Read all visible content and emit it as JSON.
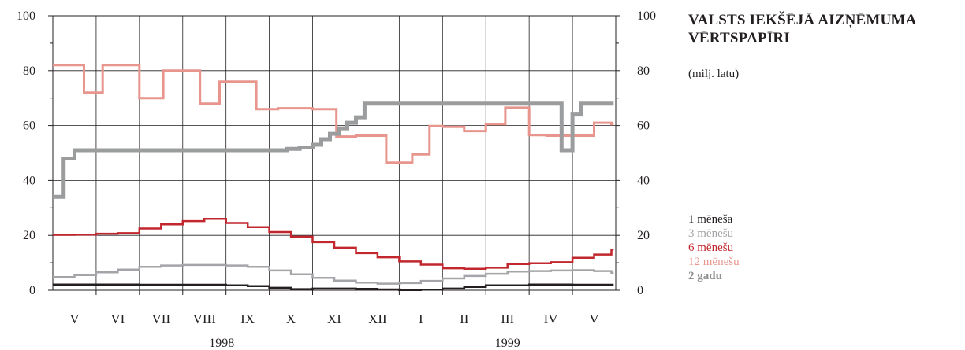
{
  "chart_data": {
    "type": "line",
    "title": "VALSTS IEKŠĒJĀ AIZŅĒMUMA VĒRTSPAPĪRI",
    "subtitle": "(milj. latu)",
    "ylim": [
      0,
      100
    ],
    "y_ticks": [
      "0",
      "20",
      "40",
      "60",
      "80",
      "100"
    ],
    "x_range": [
      0,
      13
    ],
    "months": [
      "V",
      "VI",
      "VII",
      "VIII",
      "IX",
      "X",
      "XI",
      "XII",
      "I",
      "II",
      "III",
      "IV",
      "V"
    ],
    "years": [
      {
        "label": "1998",
        "center": 3.9
      },
      {
        "label": "1999",
        "center": 10.5
      }
    ],
    "grid": true,
    "legend_position": "right",
    "series": [
      {
        "name": "1 mēneša",
        "color": "#231f20",
        "width": 2.5,
        "bold": false,
        "x": [
          0.0,
          1.0,
          2.0,
          3.0,
          4.0,
          4.5,
          5.0,
          5.5,
          6.0,
          7.0,
          7.5,
          8.0,
          8.5,
          9.0,
          9.5,
          10.0,
          11.0,
          12.0,
          12.9
        ],
        "y": [
          2.1,
          2.1,
          2.0,
          2.0,
          1.8,
          1.5,
          0.9,
          0.4,
          0.6,
          0.5,
          0.3,
          0.1,
          0.2,
          0.6,
          1.2,
          1.8,
          2.1,
          2.0,
          2.0
        ]
      },
      {
        "name": "3 mēnešu",
        "color": "#a3a5a8",
        "width": 2.5,
        "bold": false,
        "x": [
          0.0,
          0.5,
          1.0,
          1.5,
          2.0,
          2.5,
          3.0,
          3.5,
          4.0,
          4.5,
          5.0,
          5.5,
          6.0,
          6.5,
          7.0,
          7.5,
          8.0,
          8.5,
          9.0,
          9.5,
          10.0,
          10.5,
          11.0,
          11.5,
          12.0,
          12.5,
          12.9
        ],
        "y": [
          4.8,
          5.5,
          6.5,
          7.5,
          8.5,
          9.0,
          9.2,
          9.2,
          9.0,
          8.5,
          7.2,
          5.8,
          4.5,
          3.5,
          2.8,
          2.4,
          2.6,
          3.4,
          4.3,
          5.2,
          6.0,
          6.8,
          7.0,
          7.2,
          7.3,
          7.0,
          6.3
        ]
      },
      {
        "name": "6 mēnešu",
        "color": "#c1272d",
        "width": 2.5,
        "bold": false,
        "x": [
          0.0,
          0.5,
          1.0,
          1.5,
          2.0,
          2.5,
          3.0,
          3.5,
          4.0,
          4.5,
          5.0,
          5.5,
          6.0,
          6.5,
          7.0,
          7.5,
          8.0,
          8.5,
          9.0,
          9.5,
          10.0,
          10.5,
          11.0,
          11.5,
          12.0,
          12.5,
          12.9
        ],
        "y": [
          20.2,
          20.3,
          20.6,
          20.8,
          22.5,
          24.0,
          25.2,
          26.0,
          24.5,
          23.0,
          21.2,
          19.5,
          17.5,
          15.5,
          13.5,
          12.0,
          10.5,
          9.3,
          8.0,
          7.8,
          8.2,
          9.5,
          9.8,
          10.2,
          11.8,
          13.0,
          14.8
        ]
      },
      {
        "name": "12 mēnešu",
        "color": "#e8968d",
        "width": 3,
        "bold": false,
        "x": [
          0.0,
          0.72,
          1.15,
          2.0,
          2.55,
          3.4,
          3.85,
          4.7,
          5.2,
          6.0,
          6.55,
          7.0,
          7.7,
          8.3,
          8.7,
          9.0,
          9.5,
          10.0,
          10.45,
          11.0,
          11.4,
          12.5,
          12.9
        ],
        "y": [
          82.0,
          72.0,
          82.0,
          70.0,
          80.0,
          68.0,
          76.0,
          66.0,
          66.3,
          66.0,
          56.0,
          56.3,
          46.5,
          49.5,
          59.8,
          59.5,
          58.0,
          60.5,
          66.5,
          56.5,
          56.3,
          61.0,
          60.5
        ]
      },
      {
        "name": "2 gadu",
        "color": "#9b9c9e",
        "width": 5,
        "bold": true,
        "x": [
          0.0,
          0.25,
          0.5,
          5.4,
          5.7,
          6.0,
          6.2,
          6.4,
          6.6,
          6.8,
          7.0,
          7.2,
          7.4,
          11.5,
          11.75,
          12.0,
          12.2,
          12.9
        ],
        "y": [
          34.0,
          48.0,
          51.0,
          51.5,
          52.0,
          53.0,
          55.0,
          57.0,
          59.0,
          61.0,
          63.0,
          68.0,
          68.0,
          68.0,
          51.0,
          64.0,
          68.0,
          68.0
        ]
      }
    ]
  }
}
